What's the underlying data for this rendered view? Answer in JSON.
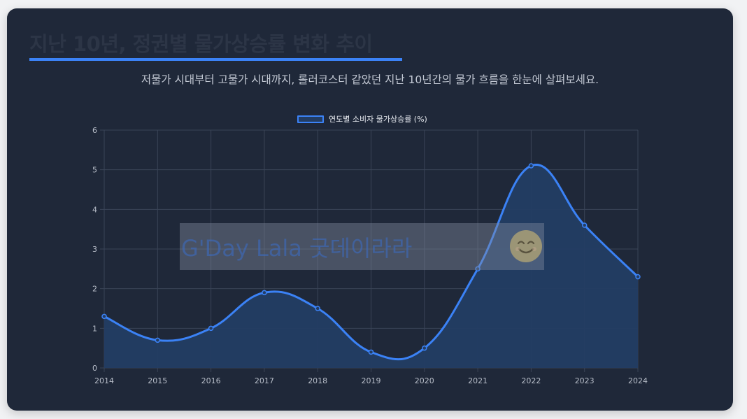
{
  "header": {
    "title": "지난 10년, 정권별 물가상승률 변화 추이",
    "subtitle": "저물가 시대부터 고물가 시대까지, 롤러코스터 같았던 지난 10년간의 물가 흐름을 한눈에 살펴보세요."
  },
  "watermark": {
    "text": "G'Day Lala 굿데이라라",
    "icon": "smile-icon"
  },
  "colors": {
    "background": "#1f2839",
    "accent": "#3b82f6",
    "area_fill": "#233d63",
    "grid": "#3a4457",
    "tick": "#b8bec9"
  },
  "chart_data": {
    "type": "line",
    "x": [
      "2014",
      "2015",
      "2016",
      "2017",
      "2018",
      "2019",
      "2020",
      "2021",
      "2022",
      "2023",
      "2024"
    ],
    "series": [
      {
        "name": "연도별 소비자 물가상승률 (%)",
        "values": [
          1.3,
          0.7,
          1.0,
          1.9,
          1.5,
          0.4,
          0.5,
          2.5,
          5.1,
          3.6,
          2.3
        ]
      }
    ],
    "ylim": [
      0,
      6
    ],
    "yticks": [
      "0",
      "1",
      "2",
      "3",
      "4",
      "5",
      "6"
    ],
    "grid": true,
    "filled": true,
    "smooth": true,
    "legend": "top-center"
  }
}
